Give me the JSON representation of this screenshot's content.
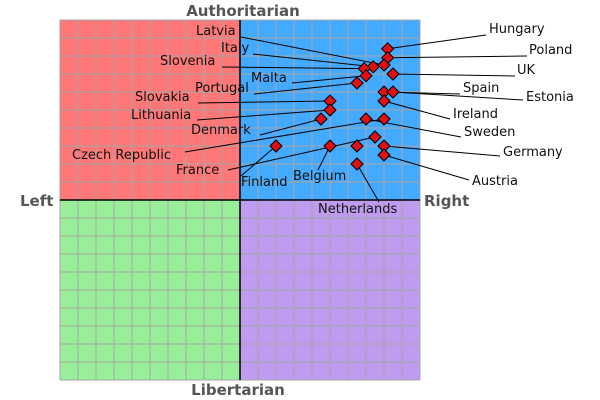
{
  "chart_data": {
    "type": "scatter",
    "title": "",
    "axis_labels": {
      "top": "Authoritarian",
      "bottom": "Libertarian",
      "left": "Left",
      "right": "Right"
    },
    "xlim": [
      -10,
      10
    ],
    "ylim": [
      -10,
      10
    ],
    "grid": true,
    "quadrant_colors": {
      "authoritarian_left": "#ff7777",
      "authoritarian_right": "#44aaff",
      "libertarian_left": "#99ee99",
      "libertarian_right": "#c09cf0"
    },
    "marker_color": "#dd1111",
    "points": [
      {
        "label": "Hungary",
        "x": 8.2,
        "y": 8.4
      },
      {
        "label": "Poland",
        "x": 8.2,
        "y": 7.9
      },
      {
        "label": "Latvia",
        "x": 8.0,
        "y": 7.5
      },
      {
        "label": "Italy",
        "x": 7.4,
        "y": 7.4
      },
      {
        "label": "Slovenia",
        "x": 6.9,
        "y": 7.3
      },
      {
        "label": "UK",
        "x": 8.5,
        "y": 7.0
      },
      {
        "label": "Malta",
        "x": 7.0,
        "y": 6.9
      },
      {
        "label": "Portugal",
        "x": 6.5,
        "y": 6.5
      },
      {
        "label": "Spain",
        "x": 8.0,
        "y": 6.0
      },
      {
        "label": "Estonia",
        "x": 8.5,
        "y": 6.0
      },
      {
        "label": "Slovakia",
        "x": 5.0,
        "y": 5.5
      },
      {
        "label": "Lithuania",
        "x": 5.0,
        "y": 5.0
      },
      {
        "label": "Ireland",
        "x": 8.0,
        "y": 5.5
      },
      {
        "label": "Denmark",
        "x": 4.5,
        "y": 4.5
      },
      {
        "label": "Sweden",
        "x": 7.0,
        "y": 4.5
      },
      {
        "label": "Czech Republic",
        "x": 8.0,
        "y": 4.5
      },
      {
        "label": "France",
        "x": 7.5,
        "y": 3.5
      },
      {
        "label": "Finland",
        "x": 2.0,
        "y": 3.0
      },
      {
        "label": "Belgium",
        "x": 5.0,
        "y": 3.0
      },
      {
        "label": "Germany",
        "x": 8.0,
        "y": 3.0
      },
      {
        "label": "Netherlands",
        "x": 6.5,
        "y": 2.0
      },
      {
        "label": "Austria",
        "x": 8.0,
        "y": 2.5
      },
      {
        "label": "",
        "x": 6.5,
        "y": 3.0
      }
    ]
  }
}
